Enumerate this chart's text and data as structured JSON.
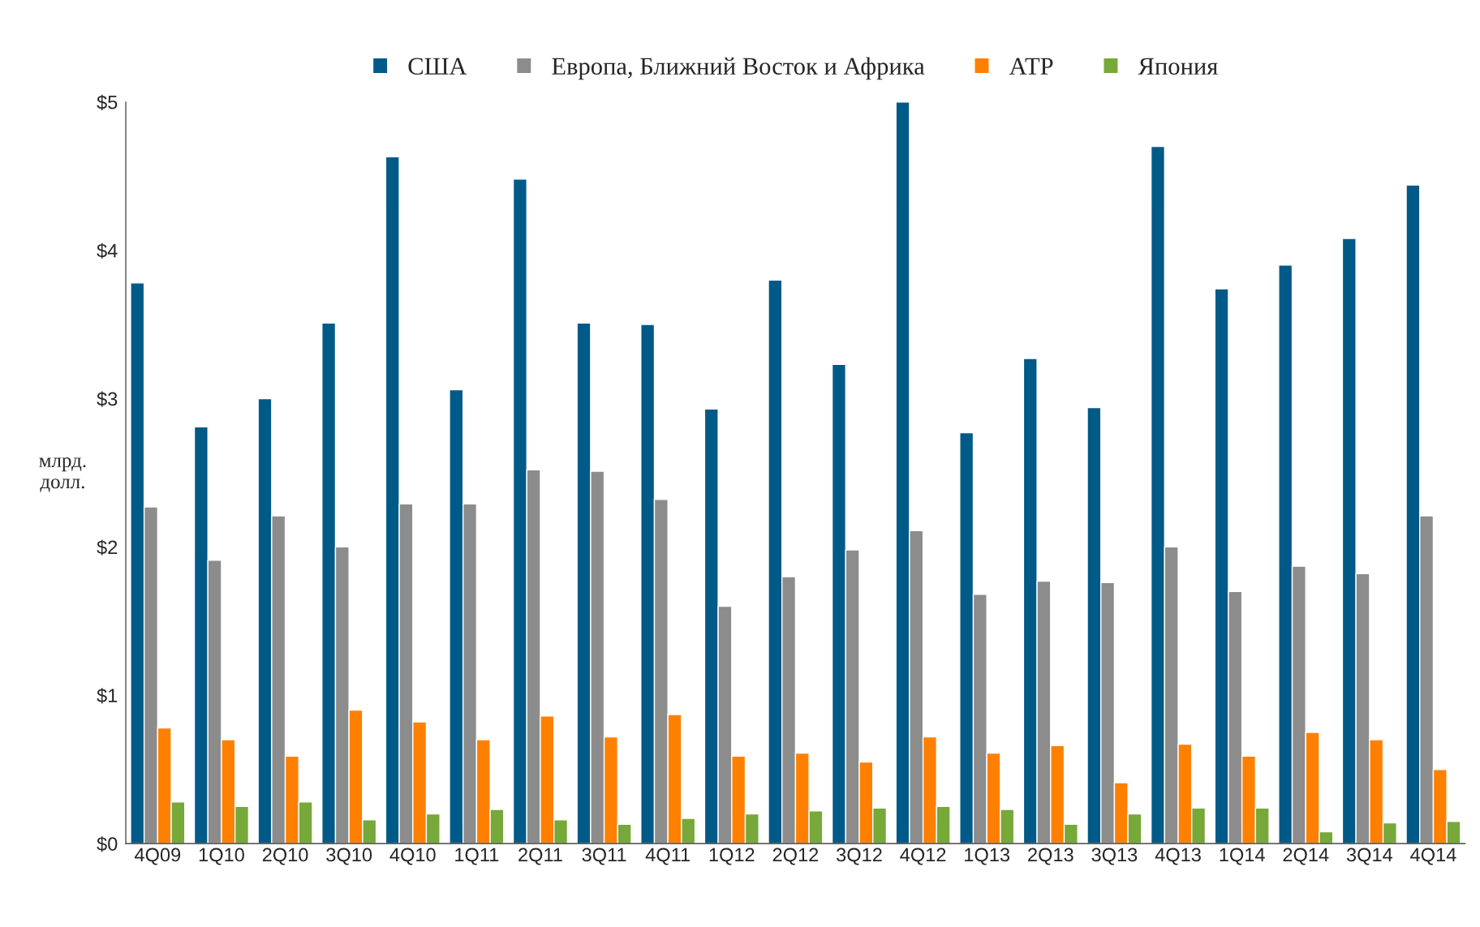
{
  "chart_data": {
    "type": "bar",
    "ylabel": "млрд. долл.",
    "categories": [
      "4Q09",
      "1Q10",
      "2Q10",
      "3Q10",
      "4Q10",
      "1Q11",
      "2Q11",
      "3Q11",
      "4Q11",
      "1Q12",
      "2Q12",
      "3Q12",
      "4Q12",
      "1Q13",
      "2Q13",
      "3Q13",
      "4Q13",
      "1Q14",
      "2Q14",
      "3Q14",
      "4Q14"
    ],
    "series": [
      {
        "name": "США",
        "color": "#005a87",
        "values": [
          3.78,
          2.81,
          3.0,
          3.51,
          4.63,
          3.06,
          4.48,
          3.51,
          3.5,
          2.93,
          3.8,
          3.23,
          5.0,
          2.77,
          3.27,
          2.94,
          4.7,
          3.74,
          3.9,
          4.08,
          4.44
        ]
      },
      {
        "name": "Европа, Ближний Восток и Африка",
        "color": "#8c8c8c",
        "values": [
          2.27,
          1.91,
          2.21,
          2.0,
          2.29,
          2.29,
          2.52,
          2.51,
          2.32,
          1.6,
          1.8,
          1.98,
          2.11,
          1.68,
          1.77,
          1.76,
          2.0,
          1.7,
          1.87,
          1.82,
          2.21
        ]
      },
      {
        "name": "АТР",
        "color": "#ff8000",
        "values": [
          0.78,
          0.7,
          0.59,
          0.9,
          0.82,
          0.7,
          0.86,
          0.72,
          0.87,
          0.59,
          0.61,
          0.55,
          0.72,
          0.61,
          0.66,
          0.41,
          0.67,
          0.59,
          0.75,
          0.7,
          0.5
        ]
      },
      {
        "name": "Япония",
        "color": "#76a83a",
        "values": [
          0.28,
          0.25,
          0.28,
          0.16,
          0.2,
          0.23,
          0.16,
          0.13,
          0.17,
          0.2,
          0.22,
          0.24,
          0.25,
          0.23,
          0.13,
          0.2,
          0.24,
          0.24,
          0.08,
          0.14,
          0.15
        ]
      }
    ],
    "ylim": [
      0,
      5
    ],
    "yticks": [
      {
        "value": 0,
        "label": "$0"
      },
      {
        "value": 1,
        "label": "$1"
      },
      {
        "value": 2,
        "label": "$2"
      },
      {
        "value": 3,
        "label": "$3"
      },
      {
        "value": 4,
        "label": "$4"
      },
      {
        "value": 5,
        "label": "$5"
      }
    ],
    "grid": false,
    "legend": "top"
  }
}
